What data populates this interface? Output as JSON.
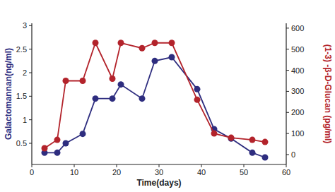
{
  "chart_data": {
    "type": "line",
    "xlabel": "Time(days)",
    "ylabel": "Galactomannan(ng/ml)",
    "y2label": "(1-3) -β-D-Glucan (pg/ml)",
    "x": [
      3,
      6,
      8,
      12,
      15,
      19,
      21,
      26,
      29,
      33,
      39,
      43,
      47,
      52,
      55
    ],
    "series": [
      {
        "color": "#2e2d7f",
        "marker": "circle",
        "values": [
          0.3,
          0.3,
          0.5,
          0.7,
          1.45,
          1.45,
          1.75,
          1.45,
          2.25,
          2.33,
          1.65,
          0.8,
          0.6,
          0.3,
          0.2
        ]
      },
      {
        "color": "#b3232b",
        "marker": "circle",
        "axis": "y2",
        "values": [
          30,
          70,
          350,
          350,
          530,
          360,
          530,
          505,
          530,
          530,
          260,
          100,
          80,
          70,
          60
        ]
      }
    ],
    "xlim": [
      0,
      60
    ],
    "xticks": [
      0,
      10,
      20,
      30,
      40,
      50,
      60
    ],
    "ylim": [
      0.05,
      3.05
    ],
    "yticks": [
      0.5,
      1,
      1.5,
      2,
      2.5,
      3
    ],
    "y2lim": [
      -47,
      623
    ],
    "y2ticks": [
      0,
      100,
      200,
      300,
      400,
      500,
      600
    ],
    "grid": false
  }
}
